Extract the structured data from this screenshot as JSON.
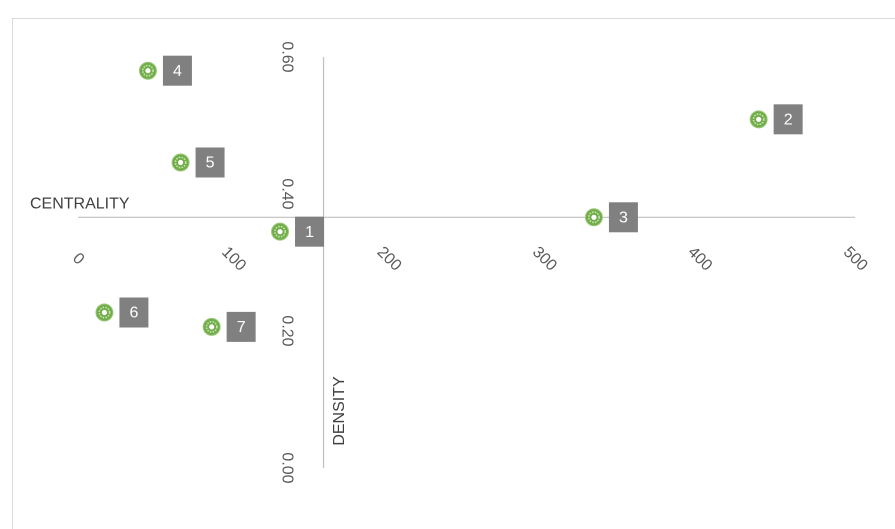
{
  "chart_data": {
    "type": "scatter",
    "title": "",
    "xlabel": "CENTRALITY",
    "ylabel": "DENSITY",
    "xlim": [
      0,
      500
    ],
    "ylim": [
      0.0,
      0.6
    ],
    "x_ticks": [
      "0",
      "100",
      "200",
      "300",
      "400",
      "500"
    ],
    "y_ticks": [
      "0.00",
      "0.20",
      "0.40",
      "0.60"
    ],
    "x_axis_crosses_y_at": 0.366,
    "y_axis_crosses_x_at": 158,
    "grid": false,
    "legend": "none",
    "marker_color": "#70ad47",
    "label_box_color": "#808080",
    "axis_color": "#bfbfbf",
    "points": [
      {
        "label": "1",
        "x": 130,
        "y": 0.345
      },
      {
        "label": "2",
        "x": 438,
        "y": 0.509
      },
      {
        "label": "3",
        "x": 332,
        "y": 0.366
      },
      {
        "label": "4",
        "x": 45,
        "y": 0.58
      },
      {
        "label": "5",
        "x": 66,
        "y": 0.446
      },
      {
        "label": "6",
        "x": 17,
        "y": 0.227
      },
      {
        "label": "7",
        "x": 86,
        "y": 0.206
      }
    ]
  }
}
